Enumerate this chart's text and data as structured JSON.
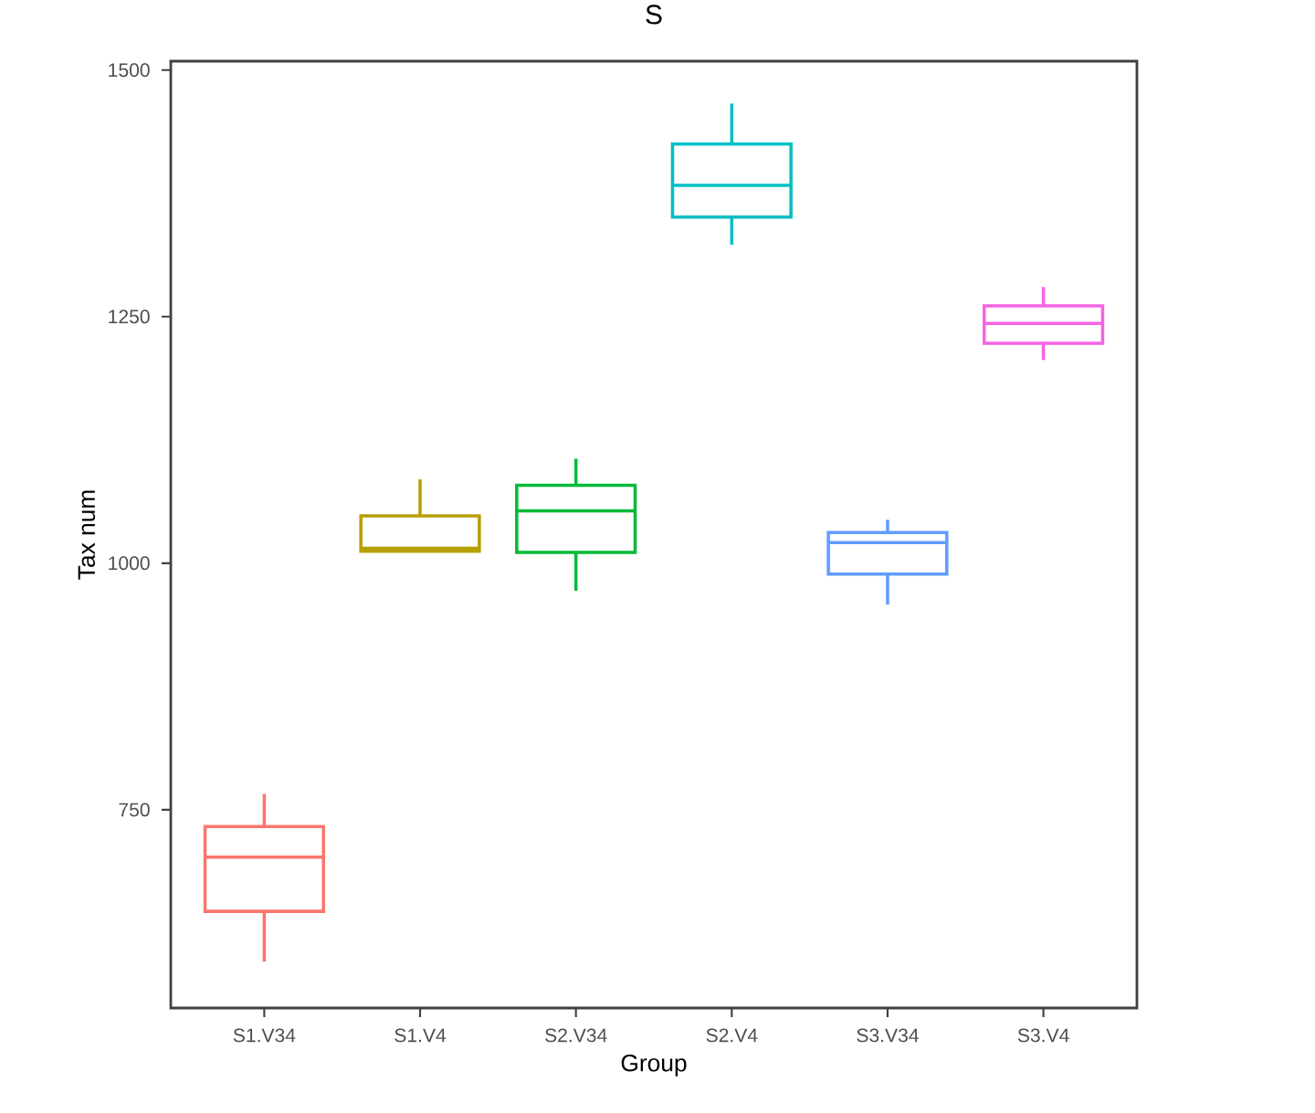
{
  "chart_data": {
    "type": "box",
    "title": "S",
    "xlabel": "Group",
    "ylabel": "Tax num",
    "categories": [
      "S1.V34",
      "S1.V4",
      "S2.V34",
      "S2.V4",
      "S3.V34",
      "S3.V4"
    ],
    "colors": [
      "#F8766D",
      "#B79F00",
      "#00BA38",
      "#00BFC4",
      "#619CFF",
      "#F564E3"
    ],
    "boxes": [
      {
        "low": 596,
        "q1": 647,
        "median": 702,
        "q3": 733,
        "high": 766
      },
      {
        "low": 1012,
        "q1": 1012,
        "median": 1015,
        "q3": 1048,
        "high": 1085
      },
      {
        "low": 972,
        "q1": 1011,
        "median": 1053,
        "q3": 1079,
        "high": 1106
      },
      {
        "low": 1323,
        "q1": 1351,
        "median": 1383,
        "q3": 1425,
        "high": 1466
      },
      {
        "low": 958,
        "q1": 989,
        "median": 1021,
        "q3": 1031,
        "high": 1044
      },
      {
        "low": 1206,
        "q1": 1223,
        "median": 1243,
        "q3": 1261,
        "high": 1280
      }
    ],
    "ylim": [
      549,
      1509
    ],
    "yticks": [
      750,
      1000,
      1250,
      1500
    ]
  }
}
